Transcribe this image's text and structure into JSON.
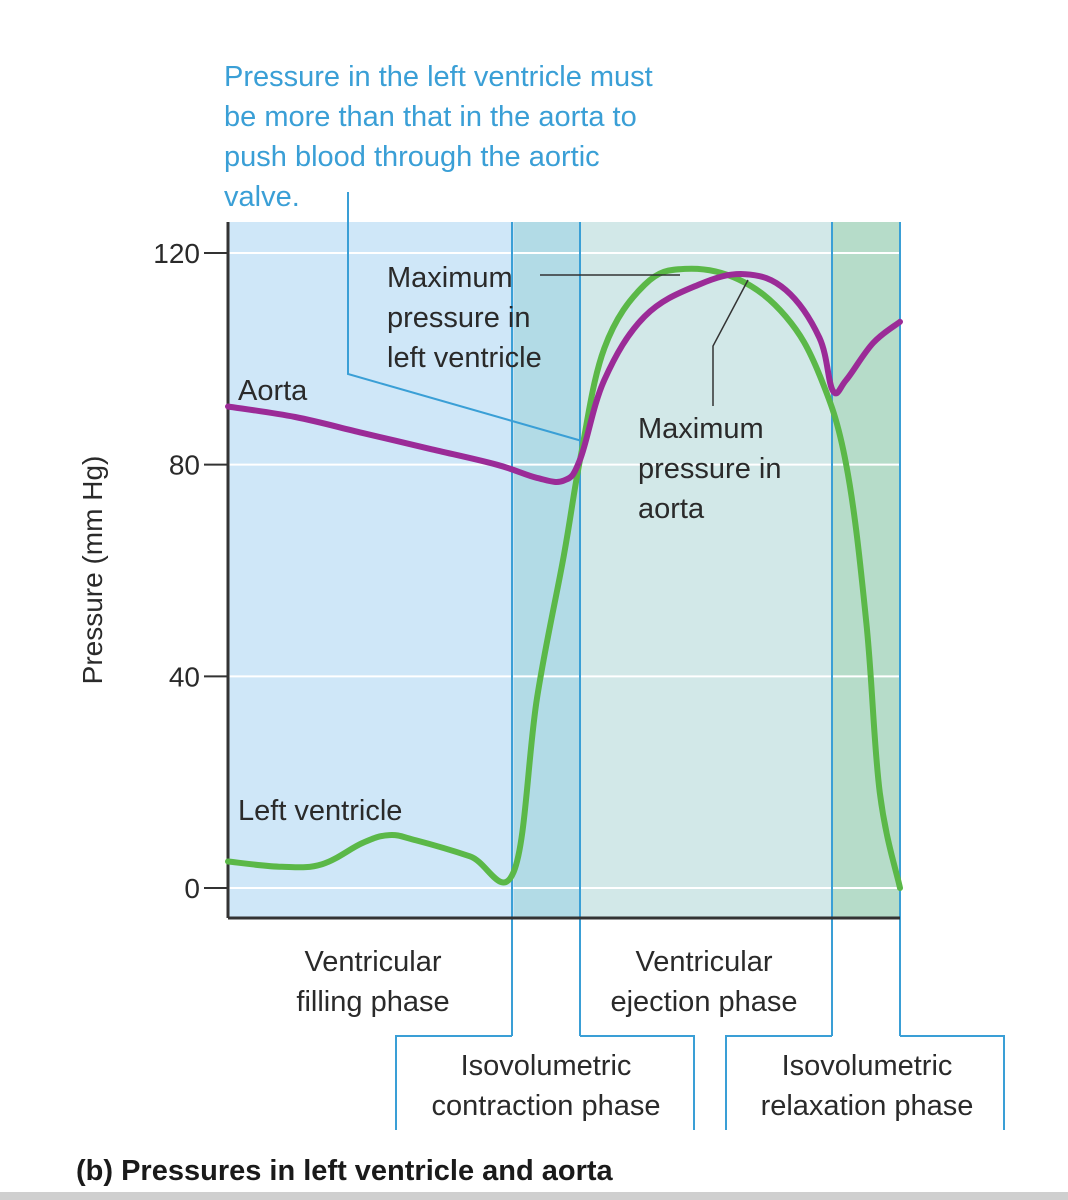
{
  "callout": {
    "lines": [
      "Pressure in the left ventricle must",
      "be more than that in the aorta to",
      "push blood through the aortic",
      "valve."
    ]
  },
  "labels": {
    "aorta": "Aorta",
    "left_ventricle": "Left ventricle",
    "max_lv": [
      "Maximum",
      "pressure in",
      "left ventricle"
    ],
    "max_aorta": [
      "Maximum",
      "pressure in",
      "aorta"
    ]
  },
  "phases": {
    "filling": [
      "Ventricular",
      "filling phase"
    ],
    "ejection": [
      "Ventricular",
      "ejection phase"
    ],
    "iso_contraction": [
      "Isovolumetric",
      "contraction phase"
    ],
    "iso_relaxation": [
      "Isovolumetric",
      "relaxation phase"
    ]
  },
  "caption": "(b) Pressures in left ventricle and aorta",
  "colors": {
    "filling_bg": "#cfe7f8",
    "contraction_bg": "#b2dbe6",
    "ejection_bg": "#d2e8e8",
    "relaxation_bg": "#b6dcc9",
    "aorta_line": "#9b2b97",
    "lv_line": "#5bb848",
    "callout_text": "#3a9fd6"
  },
  "chart_data": {
    "type": "line",
    "x": [
      0,
      10,
      20,
      30,
      40,
      50,
      60,
      70,
      80,
      90,
      100
    ],
    "x_range": [
      0,
      100
    ],
    "ylabel": "Pressure (mm Hg)",
    "ylim": [
      -6,
      124
    ],
    "yticks": [
      0,
      40,
      80,
      120
    ],
    "grid": true,
    "phase_boundaries": [
      42.5,
      52.4,
      90.0,
      100
    ],
    "series": [
      {
        "name": "Aorta",
        "points": [
          [
            0,
            91
          ],
          [
            10,
            89
          ],
          [
            20,
            86
          ],
          [
            30,
            83
          ],
          [
            40,
            80
          ],
          [
            46,
            77.5
          ],
          [
            50,
            77
          ],
          [
            52.4,
            81
          ],
          [
            56,
            96
          ],
          [
            62,
            108
          ],
          [
            70,
            114
          ],
          [
            77,
            116
          ],
          [
            83,
            113
          ],
          [
            88,
            104
          ],
          [
            90,
            94
          ],
          [
            92,
            96
          ],
          [
            96,
            103
          ],
          [
            100,
            107
          ]
        ]
      },
      {
        "name": "Left ventricle",
        "points": [
          [
            0,
            5
          ],
          [
            8,
            4
          ],
          [
            14,
            4.5
          ],
          [
            20,
            8.5
          ],
          [
            24,
            10
          ],
          [
            28,
            9
          ],
          [
            36,
            6
          ],
          [
            42.5,
            3
          ],
          [
            46,
            36
          ],
          [
            50,
            63
          ],
          [
            52.4,
            81
          ],
          [
            56,
            102
          ],
          [
            62,
            114
          ],
          [
            68,
            117
          ],
          [
            76,
            115
          ],
          [
            83,
            108
          ],
          [
            88,
            97
          ],
          [
            92,
            80
          ],
          [
            95,
            50
          ],
          [
            97,
            18
          ],
          [
            100,
            0
          ]
        ]
      }
    ]
  }
}
